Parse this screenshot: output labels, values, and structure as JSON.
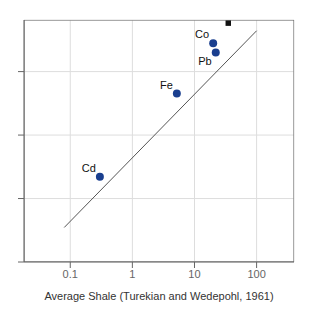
{
  "chart_data": {
    "type": "scatter",
    "xlabel": "Average Shale (Turekian and Wedepohl, 1961)",
    "log": true,
    "grid": true,
    "tick_labels": "x",
    "xlim": [
      0.018,
      400
    ],
    "ylim": [
      0.01,
      65
    ],
    "xticks": [
      0.1,
      1,
      10,
      100
    ],
    "yticks": [
      0.01,
      0.1,
      1,
      10
    ],
    "series": [
      {
        "type": "scatter",
        "marker": "circle",
        "color": "#1a3f8f",
        "x": [
          0.3,
          5.2,
          20,
          22
        ],
        "values": [
          0.22,
          4.5,
          28,
          20
        ],
        "labels": [
          "Cd",
          "Fe",
          "Co",
          "Pb"
        ]
      },
      {
        "type": "scatter",
        "marker": "square",
        "color": "#111111",
        "x": [
          35
        ],
        "values": [
          58
        ]
      },
      {
        "type": "line",
        "color": "#555555",
        "x": [
          0.08,
          100
        ],
        "values": [
          0.035,
          44
        ]
      }
    ]
  }
}
